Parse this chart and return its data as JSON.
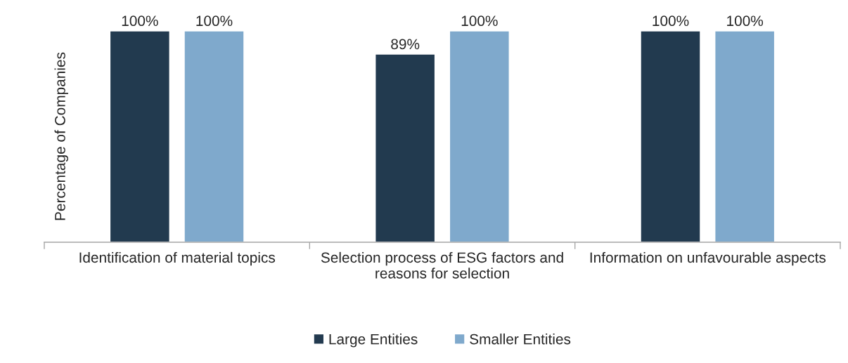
{
  "chart_data": {
    "type": "bar",
    "ylabel": "Percentage of Companies",
    "categories": [
      "Identification of material topics",
      "Selection process of ESG factors and reasons for selection",
      "Information on unfavourable aspects"
    ],
    "series": [
      {
        "name": "Large Entities",
        "color": "#223a4f",
        "values": [
          100,
          89,
          100
        ],
        "value_labels": [
          "100%",
          "89%",
          "100%"
        ]
      },
      {
        "name": "Smaller Entities",
        "color": "#7fa9cc",
        "values": [
          100,
          100,
          100
        ],
        "value_labels": [
          "100%",
          "100%",
          "100%"
        ]
      }
    ],
    "legend": "bottom",
    "grid": false
  }
}
